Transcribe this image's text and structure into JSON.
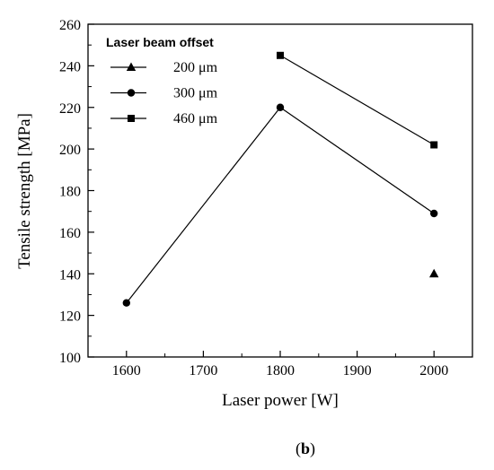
{
  "chart_data": {
    "type": "line",
    "xlabel": "Laser power  [W]",
    "ylabel": "Tensile strength  [MPa]",
    "xlim": [
      1550,
      2050
    ],
    "ylim": [
      100,
      260
    ],
    "x_ticks": [
      1600,
      1700,
      1800,
      1900,
      2000
    ],
    "y_ticks": [
      100,
      120,
      140,
      160,
      180,
      200,
      220,
      240,
      260
    ],
    "grid": false,
    "legend_position": "top-left",
    "legend_title": "Laser beam offset",
    "series": [
      {
        "name": "200 μm",
        "marker": "triangle",
        "x": [
          2000
        ],
        "y": [
          140
        ]
      },
      {
        "name": "300 μm",
        "marker": "circle",
        "x": [
          1600,
          1800,
          2000
        ],
        "y": [
          126,
          220,
          169
        ]
      },
      {
        "name": "460 μm",
        "marker": "square",
        "x": [
          1800,
          2000
        ],
        "y": [
          245,
          202
        ]
      }
    ]
  },
  "caption": {
    "open": "(",
    "bold": "b",
    "close": ")"
  }
}
